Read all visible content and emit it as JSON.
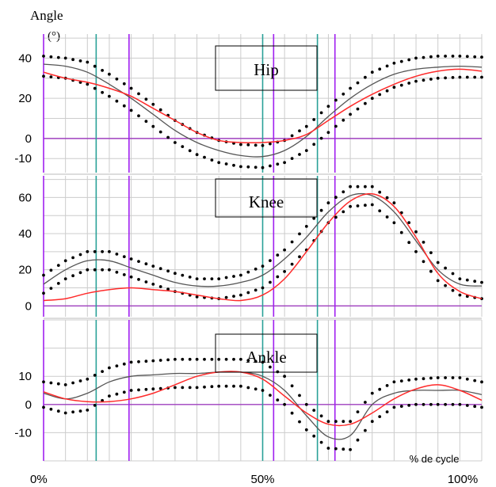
{
  "y_axis_title": "Angle",
  "y_axis_unit": "(°)",
  "x_axis_label": "% de cycle",
  "colors": {
    "grid": "#cccccc",
    "separator": "#bbbbbb",
    "mean": "#555555",
    "band": "#000000",
    "subject": "#ff2a2a",
    "event_teal": "#2aa198",
    "event_purple": "#a020f0",
    "zero_line": "#a040c0"
  },
  "events": {
    "teal": [
      12,
      50,
      62.5
    ],
    "purple": [
      19.5,
      52.5,
      66.5
    ]
  },
  "chart_data": [
    {
      "type": "line",
      "title": "Hip",
      "ylim": [
        -17,
        52
      ],
      "yticks": [
        {
          "value": 40,
          "label": "40"
        },
        {
          "value": 20,
          "label": "20"
        },
        {
          "value": 0,
          "label": "0"
        },
        {
          "value": -10,
          "label": "-10"
        }
      ],
      "x": [
        0,
        5,
        10,
        15,
        20,
        25,
        30,
        35,
        40,
        45,
        50,
        55,
        60,
        65,
        70,
        75,
        80,
        85,
        90,
        95,
        100
      ],
      "series": [
        {
          "role": "mean",
          "values": [
            37,
            36,
            33,
            27,
            20,
            12,
            4,
            -2,
            -6,
            -8.5,
            -9,
            -6,
            1,
            11,
            20,
            27,
            32,
            34.5,
            35.5,
            36,
            35.5
          ]
        },
        {
          "role": "upper",
          "values": [
            41,
            40,
            38,
            32,
            25,
            17,
            9,
            3,
            -1,
            -3,
            -3.5,
            -1,
            6,
            16,
            25,
            33,
            37.5,
            40,
            41,
            41,
            40.5
          ]
        },
        {
          "role": "lower",
          "values": [
            31,
            30,
            27,
            21,
            14,
            6,
            -2,
            -8,
            -12,
            -14,
            -14.5,
            -12,
            -6,
            3,
            12,
            20,
            25.5,
            28.5,
            30,
            30.5,
            30.5
          ]
        },
        {
          "role": "subject",
          "values": [
            33,
            30,
            28,
            25,
            21,
            15,
            9,
            3,
            -1,
            -2,
            -2,
            -1,
            2,
            9,
            16,
            22,
            27,
            31,
            33.5,
            34.5,
            33.5
          ]
        }
      ]
    },
    {
      "type": "line",
      "title": "Knee",
      "ylim": [
        -6,
        72
      ],
      "yticks": [
        {
          "value": 60,
          "label": "60"
        },
        {
          "value": 40,
          "label": "40"
        },
        {
          "value": 20,
          "label": "20"
        },
        {
          "value": 0,
          "label": "0"
        }
      ],
      "x": [
        0,
        5,
        10,
        15,
        20,
        25,
        30,
        35,
        40,
        45,
        50,
        55,
        60,
        65,
        70,
        75,
        80,
        85,
        90,
        95,
        100
      ],
      "series": [
        {
          "role": "mean",
          "values": [
            12,
            20,
            25,
            25,
            21,
            17,
            13,
            11,
            11,
            13,
            17,
            26,
            38,
            52,
            61,
            61,
            52,
            36,
            20,
            12,
            11
          ]
        },
        {
          "role": "upper",
          "values": [
            17,
            25,
            30,
            30,
            26,
            22,
            18,
            15,
            15,
            17,
            22,
            31,
            44,
            57,
            66,
            66,
            57,
            41,
            24,
            15,
            13
          ]
        },
        {
          "role": "lower",
          "values": [
            7,
            15,
            20,
            20,
            16,
            12,
            8,
            5,
            4,
            6,
            10,
            19,
            31,
            46,
            55,
            56,
            46,
            30,
            14,
            6,
            4
          ]
        },
        {
          "role": "subject",
          "values": [
            3,
            4,
            7,
            9,
            10,
            9,
            8,
            6,
            4,
            3,
            6,
            15,
            30,
            46,
            58,
            62,
            55,
            38,
            18,
            8,
            4
          ]
        }
      ]
    },
    {
      "type": "line",
      "title": "Ankle",
      "ylim": [
        -20,
        30
      ],
      "yticks": [
        {
          "value": 10,
          "label": "10"
        },
        {
          "value": 0,
          "label": "0"
        },
        {
          "value": -10,
          "label": "-10"
        }
      ],
      "x": [
        0,
        5,
        10,
        15,
        20,
        25,
        30,
        35,
        40,
        45,
        50,
        55,
        60,
        65,
        70,
        75,
        80,
        85,
        90,
        95,
        100
      ],
      "series": [
        {
          "role": "mean",
          "values": [
            4,
            2,
            4,
            8,
            10,
            10.5,
            11,
            11,
            11.5,
            11.5,
            10,
            5,
            -4,
            -11.5,
            -11,
            0,
            4,
            5,
            5,
            5,
            3.5
          ]
        },
        {
          "role": "upper",
          "values": [
            8,
            7,
            9,
            13,
            15,
            15.5,
            16,
            16,
            16,
            16,
            15,
            10,
            0,
            -6,
            -6,
            4,
            8,
            9,
            9.5,
            9.5,
            8
          ]
        },
        {
          "role": "lower",
          "values": [
            -1,
            -3,
            -2,
            3,
            5,
            5.5,
            6,
            6,
            6.5,
            6.5,
            5,
            0,
            -9,
            -15.5,
            -16,
            -6,
            -1,
            0,
            0,
            0,
            -1
          ]
        },
        {
          "role": "subject",
          "values": [
            4.5,
            2,
            1,
            1,
            2,
            4,
            7,
            10,
            11.5,
            11.5,
            9,
            3,
            -3,
            -7,
            -7,
            -3,
            2,
            5.5,
            7,
            5,
            1.5
          ]
        }
      ]
    }
  ],
  "x_ticks": [
    {
      "value": 0,
      "label": "0%"
    },
    {
      "value": 50,
      "label": "50%"
    },
    {
      "value": 100,
      "label": "100%"
    }
  ]
}
